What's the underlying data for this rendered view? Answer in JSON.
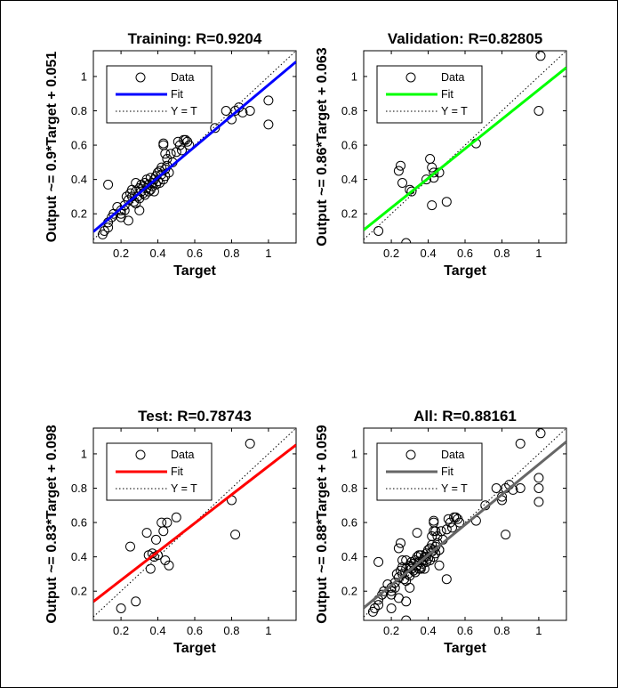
{
  "chart_data": [
    {
      "type": "scatter",
      "title": "Training: R=0.9204",
      "xlabel": "Target",
      "ylabel": "Output ~= 0.9*Target + 0.051",
      "xlim": [
        0.05,
        1.15
      ],
      "ylim": [
        0.03,
        1.15
      ],
      "xticks": [
        0.2,
        0.4,
        0.6,
        0.8,
        1
      ],
      "xtick_labels": [
        "0.2",
        "0.4",
        "0.6",
        "0.8",
        "1"
      ],
      "yticks": [
        0.2,
        0.4,
        0.6,
        0.8,
        1
      ],
      "ytick_labels": [
        "0.2",
        "0.4",
        "0.6",
        "0.8",
        "1"
      ],
      "fit": {
        "slope": 0.9,
        "intercept": 0.051,
        "color": "#0000ff"
      },
      "legend": {
        "location": "top-left",
        "entries": [
          "Data",
          "Fit",
          "Y = T"
        ]
      },
      "series": [
        {
          "x": [
            0.1,
            0.11,
            0.13,
            0.13,
            0.15,
            0.16,
            0.18,
            0.2,
            0.2,
            0.22,
            0.22,
            0.23,
            0.24,
            0.25,
            0.26,
            0.26,
            0.27,
            0.28,
            0.28,
            0.29,
            0.3,
            0.3,
            0.31,
            0.31,
            0.32,
            0.32,
            0.33,
            0.33,
            0.34,
            0.34,
            0.35,
            0.35,
            0.36,
            0.36,
            0.37,
            0.37,
            0.38,
            0.38,
            0.39,
            0.39,
            0.4,
            0.4,
            0.41,
            0.41,
            0.42,
            0.42,
            0.43,
            0.43,
            0.44,
            0.44,
            0.45,
            0.45,
            0.46,
            0.47,
            0.48,
            0.5,
            0.51,
            0.52,
            0.53,
            0.54,
            0.55,
            0.56,
            0.57,
            0.71,
            0.77,
            0.8,
            0.82,
            0.84,
            0.86,
            0.9,
            1.0,
            1.0,
            0.13,
            0.28,
            0.43,
            0.44,
            0.3,
            0.2,
            0.24
          ],
          "y": [
            0.08,
            0.1,
            0.12,
            0.37,
            0.18,
            0.2,
            0.24,
            0.22,
            0.18,
            0.22,
            0.25,
            0.3,
            0.28,
            0.32,
            0.3,
            0.34,
            0.27,
            0.33,
            0.38,
            0.3,
            0.35,
            0.29,
            0.33,
            0.37,
            0.32,
            0.36,
            0.38,
            0.31,
            0.35,
            0.4,
            0.33,
            0.37,
            0.41,
            0.34,
            0.38,
            0.36,
            0.4,
            0.33,
            0.42,
            0.37,
            0.44,
            0.39,
            0.45,
            0.38,
            0.43,
            0.47,
            0.4,
            0.6,
            0.42,
            0.46,
            0.52,
            0.48,
            0.44,
            0.55,
            0.5,
            0.56,
            0.62,
            0.6,
            0.57,
            0.63,
            0.63,
            0.62,
            0.6,
            0.7,
            0.8,
            0.75,
            0.8,
            0.82,
            0.79,
            0.8,
            0.86,
            0.72,
            0.15,
            0.26,
            0.61,
            0.55,
            0.22,
            0.2,
            0.16
          ]
        }
      ]
    },
    {
      "type": "scatter",
      "title": "Validation: R=0.82805",
      "xlabel": "Target",
      "ylabel": "Output ~= 0.86*Target + 0.063",
      "xlim": [
        0.05,
        1.15
      ],
      "ylim": [
        0.03,
        1.15
      ],
      "xticks": [
        0.2,
        0.4,
        0.6,
        0.8,
        1
      ],
      "xtick_labels": [
        "0.2",
        "0.4",
        "0.6",
        "0.8",
        "1"
      ],
      "yticks": [
        0.2,
        0.4,
        0.6,
        0.8,
        1
      ],
      "ytick_labels": [
        "0.2",
        "0.4",
        "0.6",
        "0.8",
        "1"
      ],
      "fit": {
        "slope": 0.86,
        "intercept": 0.063,
        "color": "#00ff00"
      },
      "legend": {
        "location": "top-left",
        "entries": [
          "Data",
          "Fit",
          "Y = T"
        ]
      },
      "series": [
        {
          "x": [
            0.13,
            0.24,
            0.25,
            0.26,
            0.3,
            0.31,
            0.39,
            0.41,
            0.42,
            0.42,
            0.43,
            0.43,
            0.46,
            0.5,
            0.66,
            1.0,
            1.01,
            0.28
          ],
          "y": [
            0.1,
            0.45,
            0.48,
            0.38,
            0.34,
            0.33,
            0.4,
            0.52,
            0.47,
            0.25,
            0.44,
            0.41,
            0.44,
            0.27,
            0.61,
            0.8,
            1.12,
            0.03
          ]
        }
      ]
    },
    {
      "type": "scatter",
      "title": "Test: R=0.78743",
      "xlabel": "Target",
      "ylabel": "Output ~= 0.83*Target + 0.098",
      "xlim": [
        0.05,
        1.15
      ],
      "ylim": [
        0.03,
        1.15
      ],
      "xticks": [
        0.2,
        0.4,
        0.6,
        0.8,
        1
      ],
      "xtick_labels": [
        "0.2",
        "0.4",
        "0.6",
        "0.8",
        "1"
      ],
      "yticks": [
        0.2,
        0.4,
        0.6,
        0.8,
        1
      ],
      "ytick_labels": [
        "0.2",
        "0.4",
        "0.6",
        "0.8",
        "1"
      ],
      "fit": {
        "slope": 0.83,
        "intercept": 0.098,
        "color": "#ff0000"
      },
      "legend": {
        "location": "top-left",
        "entries": [
          "Data",
          "Fit",
          "Y = T"
        ]
      },
      "series": [
        {
          "x": [
            0.2,
            0.25,
            0.28,
            0.34,
            0.35,
            0.36,
            0.38,
            0.39,
            0.4,
            0.42,
            0.43,
            0.44,
            0.45,
            0.46,
            0.5,
            0.8,
            0.82,
            0.9,
            0.37
          ],
          "y": [
            0.1,
            0.46,
            0.14,
            0.54,
            0.41,
            0.33,
            0.4,
            0.5,
            0.41,
            0.6,
            0.55,
            0.38,
            0.6,
            0.35,
            0.63,
            0.73,
            0.53,
            1.06,
            0.42
          ]
        }
      ]
    },
    {
      "type": "scatter",
      "title": "All: R=0.88161",
      "xlabel": "Target",
      "ylabel": "Output ~= 0.88*Target + 0.059",
      "xlim": [
        0.05,
        1.15
      ],
      "ylim": [
        0.03,
        1.15
      ],
      "xticks": [
        0.2,
        0.4,
        0.6,
        0.8,
        1
      ],
      "xtick_labels": [
        "0.2",
        "0.4",
        "0.6",
        "0.8",
        "1"
      ],
      "yticks": [
        0.2,
        0.4,
        0.6,
        0.8,
        1
      ],
      "ytick_labels": [
        "0.2",
        "0.4",
        "0.6",
        "0.8",
        "1"
      ],
      "fit": {
        "slope": 0.88,
        "intercept": 0.059,
        "color": "#666666"
      },
      "legend": {
        "location": "top-left",
        "entries": [
          "Data",
          "Fit",
          "Y = T"
        ]
      },
      "series": [
        {
          "x": [
            0.1,
            0.11,
            0.13,
            0.13,
            0.15,
            0.16,
            0.18,
            0.2,
            0.2,
            0.22,
            0.22,
            0.23,
            0.24,
            0.25,
            0.26,
            0.26,
            0.27,
            0.28,
            0.28,
            0.29,
            0.3,
            0.3,
            0.31,
            0.31,
            0.32,
            0.32,
            0.33,
            0.33,
            0.34,
            0.34,
            0.35,
            0.35,
            0.36,
            0.36,
            0.37,
            0.37,
            0.38,
            0.38,
            0.39,
            0.39,
            0.4,
            0.4,
            0.41,
            0.41,
            0.42,
            0.42,
            0.43,
            0.43,
            0.44,
            0.44,
            0.45,
            0.45,
            0.46,
            0.47,
            0.48,
            0.5,
            0.51,
            0.52,
            0.53,
            0.54,
            0.55,
            0.56,
            0.57,
            0.71,
            0.77,
            0.8,
            0.82,
            0.84,
            0.86,
            0.9,
            1.0,
            1.0,
            0.13,
            0.28,
            0.43,
            0.44,
            0.3,
            0.2,
            0.24,
            0.24,
            0.25,
            0.26,
            0.3,
            0.39,
            0.42,
            0.43,
            0.46,
            0.5,
            0.66,
            1.01,
            0.28,
            0.2,
            0.28,
            0.34,
            0.35,
            0.36,
            0.43,
            0.46,
            0.8,
            0.82,
            0.9,
            1.0
          ],
          "y": [
            0.08,
            0.1,
            0.12,
            0.37,
            0.18,
            0.2,
            0.24,
            0.22,
            0.18,
            0.22,
            0.25,
            0.3,
            0.28,
            0.32,
            0.3,
            0.34,
            0.27,
            0.33,
            0.38,
            0.3,
            0.35,
            0.29,
            0.33,
            0.37,
            0.32,
            0.36,
            0.38,
            0.31,
            0.35,
            0.4,
            0.33,
            0.37,
            0.41,
            0.34,
            0.38,
            0.36,
            0.4,
            0.33,
            0.42,
            0.37,
            0.44,
            0.39,
            0.45,
            0.38,
            0.43,
            0.47,
            0.4,
            0.6,
            0.42,
            0.46,
            0.52,
            0.48,
            0.44,
            0.55,
            0.5,
            0.56,
            0.62,
            0.6,
            0.57,
            0.63,
            0.63,
            0.62,
            0.6,
            0.7,
            0.8,
            0.75,
            0.8,
            0.82,
            0.79,
            0.8,
            0.86,
            0.72,
            0.15,
            0.26,
            0.61,
            0.55,
            0.22,
            0.2,
            0.16,
            0.45,
            0.48,
            0.38,
            0.34,
            0.4,
            0.52,
            0.44,
            0.44,
            0.27,
            0.61,
            1.12,
            0.03,
            0.1,
            0.14,
            0.54,
            0.41,
            0.33,
            0.55,
            0.35,
            0.73,
            0.53,
            1.06,
            0.8
          ]
        }
      ]
    }
  ]
}
